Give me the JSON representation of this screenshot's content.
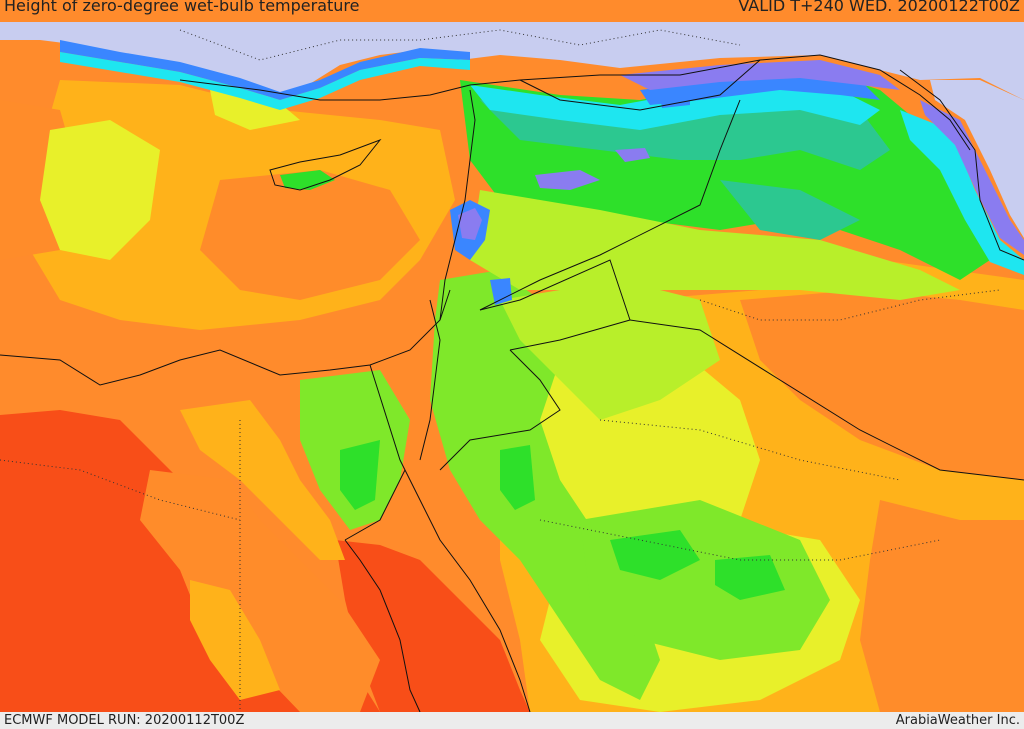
{
  "header": {
    "title": "Height of zero-degree wet-bulb temperature",
    "valid": "VALID T+240 WED. 20200122T00Z"
  },
  "footer": {
    "model_run": "ECMWF MODEL RUN: 20200112T00Z",
    "credit": "ArabiaWeather Inc."
  },
  "colors": {
    "sea_bg": "#ff8c2a",
    "red": "#f84e18",
    "orange_dark": "#ff7a28",
    "orange": "#ffb21a",
    "yellow": "#e8f02a",
    "yellow_green": "#b8ef2a",
    "green_light": "#7fe82a",
    "green": "#2ee02a",
    "teal": "#2cc890",
    "cyan": "#1ee6f0",
    "blue": "#3a86ff",
    "purple": "#8a7cf0",
    "lavender": "#c8cdf0",
    "snow": "#dfe2f5"
  }
}
